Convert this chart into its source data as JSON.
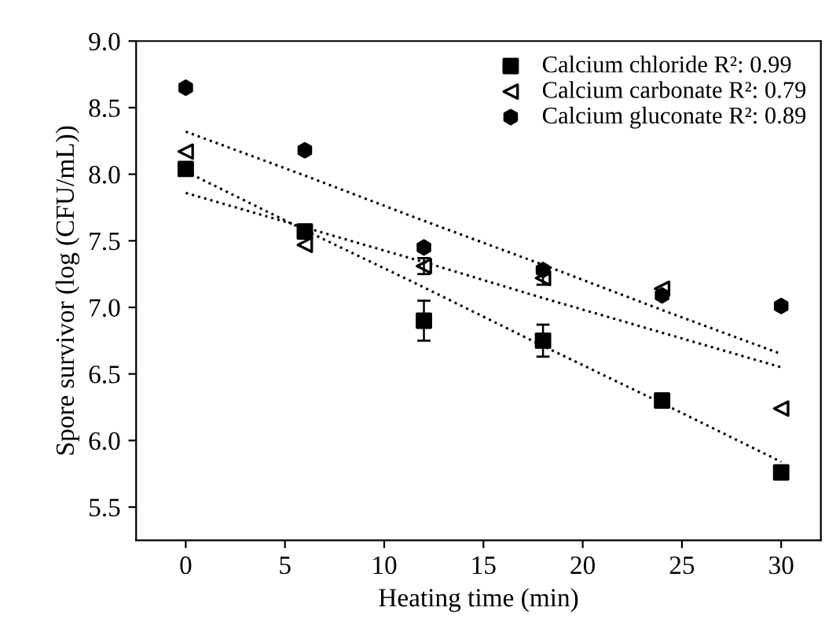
{
  "chart_data": {
    "type": "scatter",
    "xlabel": "Heating time (min)",
    "ylabel": "Spore survivor (log (CFU/mL))",
    "x": [
      0,
      6,
      12,
      18,
      24,
      30
    ],
    "series": [
      {
        "name": "Calcium chloride R²: 0.99",
        "color": "#000000",
        "marker": "square",
        "values": [
          8.04,
          7.57,
          6.9,
          6.75,
          6.3,
          5.76
        ],
        "errors": [
          null,
          0.04,
          0.15,
          0.12,
          null,
          0.05
        ]
      },
      {
        "name": "Calcium carbonate R²: 0.79",
        "color": "#000000",
        "marker": "triangle",
        "values": [
          8.17,
          7.47,
          7.31,
          7.22,
          7.14,
          6.24
        ],
        "errors": [
          null,
          null,
          0.06,
          0.05,
          null,
          null
        ]
      },
      {
        "name": "Calcium gluconate R²: 0.89",
        "color": "#000000",
        "marker": "circle",
        "values": [
          8.65,
          8.18,
          7.45,
          7.28,
          7.09,
          7.01
        ]
      },
      {
        "type": "line",
        "color": "#000000",
        "line_style": "dotted",
        "values": [
          8.02,
          7.58,
          7.15,
          6.71,
          6.28,
          5.84
        ]
      },
      {
        "type": "line",
        "color": "#000000",
        "line_style": "dotted",
        "values": [
          7.86,
          7.6,
          7.34,
          7.07,
          6.81,
          6.55
        ]
      },
      {
        "type": "line",
        "color": "#000000",
        "line_style": "dotted",
        "values": [
          8.32,
          7.99,
          7.65,
          7.32,
          6.98,
          6.65
        ]
      }
    ],
    "xlim": [
      -2.5,
      32
    ],
    "ylim": [
      5.25,
      9.0
    ],
    "xticks": [
      0,
      5,
      10,
      15,
      20,
      25,
      30
    ],
    "yticks": [
      5.5,
      {
        "value": 6,
        "label": "6.0"
      },
      6.5,
      {
        "value": 7,
        "label": "7.0"
      },
      7.5,
      {
        "value": 8,
        "label": "8.0"
      },
      8.5,
      {
        "value": 9,
        "label": "9.0"
      }
    ],
    "grid": false,
    "legend": "top right"
  }
}
